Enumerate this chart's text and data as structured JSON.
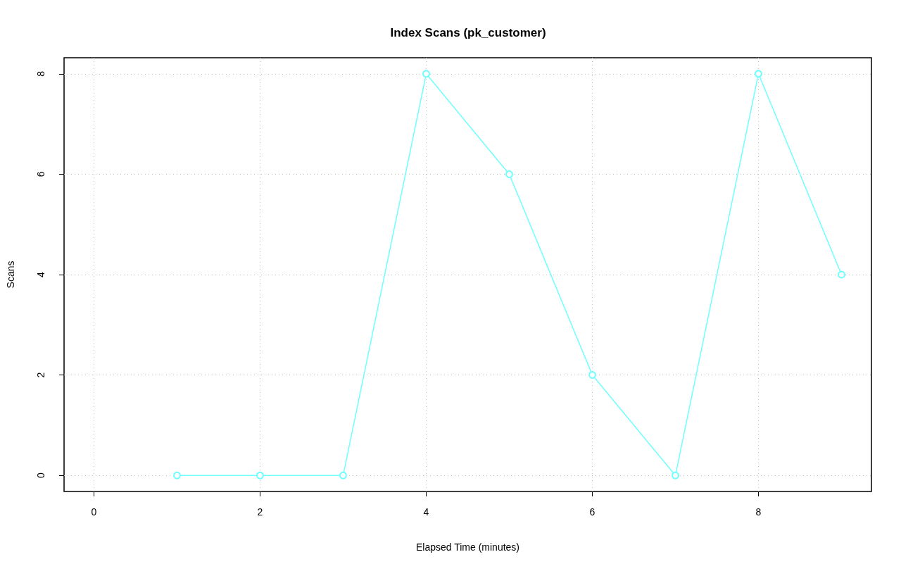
{
  "chart_data": {
    "type": "line",
    "title": "Index Scans (pk_customer)",
    "xlabel": "Elapsed Time (minutes)",
    "ylabel": "Scans",
    "x": [
      1,
      2,
      3,
      4,
      5,
      6,
      7,
      8,
      9
    ],
    "series": [
      {
        "color": "#70ffff",
        "values": [
          0,
          0,
          0,
          8,
          6,
          2,
          0,
          8,
          4
        ]
      }
    ],
    "xlim": [
      -0.36,
      9.36
    ],
    "xticks": [
      0,
      2,
      4,
      6,
      8
    ],
    "ylim": [
      -0.32,
      8.32
    ],
    "yticks": [
      0,
      2,
      4,
      6,
      8
    ],
    "grid": true,
    "marker": "circle",
    "line_style": "solid"
  }
}
